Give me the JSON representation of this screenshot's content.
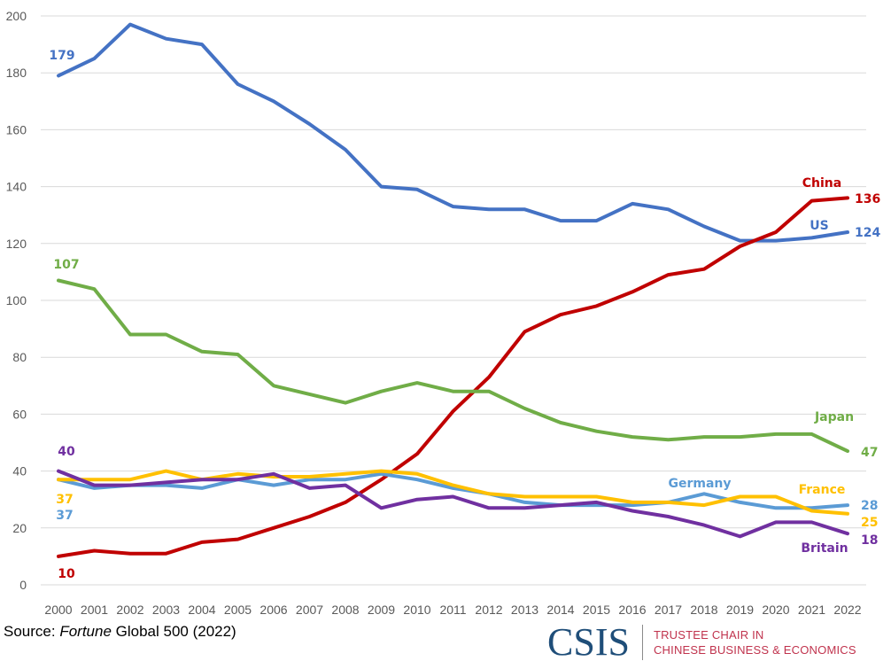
{
  "chart_data": {
    "type": "line",
    "title": "",
    "xlabel": "",
    "ylabel": "",
    "ylim": [
      0,
      200
    ],
    "yticks": [
      0,
      20,
      40,
      60,
      80,
      100,
      120,
      140,
      160,
      180,
      200
    ],
    "grid": true,
    "legend": "none (direct labels)",
    "x": [
      "2000",
      "2001",
      "2002",
      "2003",
      "2004",
      "2005",
      "2006",
      "2007",
      "2008",
      "2009",
      "2010",
      "2011",
      "2012",
      "2013",
      "2014",
      "2015",
      "2016",
      "2017",
      "2018",
      "2019",
      "2020",
      "2021",
      "2022"
    ],
    "series": [
      {
        "name": "US",
        "color": "#4472c4",
        "label": "US",
        "start_label": "179",
        "end_label": "124",
        "values": [
          179,
          185,
          197,
          192,
          190,
          176,
          170,
          162,
          153,
          140,
          139,
          133,
          132,
          132,
          128,
          128,
          134,
          132,
          126,
          121,
          121,
          122,
          124
        ]
      },
      {
        "name": "China",
        "color": "#c00000",
        "label": "China",
        "start_label": "10",
        "end_label": "136",
        "values": [
          10,
          12,
          11,
          11,
          15,
          16,
          20,
          24,
          29,
          37,
          46,
          61,
          73,
          89,
          95,
          98,
          103,
          109,
          111,
          119,
          124,
          135,
          136
        ]
      },
      {
        "name": "Japan",
        "color": "#70ad47",
        "label": "Japan",
        "start_label": "107",
        "end_label": "47",
        "values": [
          107,
          104,
          88,
          88,
          82,
          81,
          70,
          67,
          64,
          68,
          71,
          68,
          68,
          62,
          57,
          54,
          52,
          51,
          52,
          52,
          53,
          53,
          47
        ]
      },
      {
        "name": "Germany",
        "color": "#5b9bd5",
        "label": "Germany",
        "start_label": "37",
        "end_label": "28",
        "values": [
          37,
          34,
          35,
          35,
          34,
          37,
          35,
          37,
          37,
          39,
          37,
          34,
          32,
          29,
          28,
          28,
          28,
          29,
          32,
          29,
          27,
          27,
          28
        ]
      },
      {
        "name": "France",
        "color": "#ffc000",
        "label": "France",
        "start_label": "37",
        "end_label": "25",
        "values": [
          37,
          37,
          37,
          40,
          37,
          39,
          38,
          38,
          39,
          40,
          39,
          35,
          32,
          31,
          31,
          31,
          29,
          29,
          28,
          31,
          31,
          26,
          25
        ]
      },
      {
        "name": "Britain",
        "color": "#7030a0",
        "label": "Britain",
        "start_label": "40",
        "end_label": "18",
        "values": [
          40,
          35,
          35,
          36,
          37,
          37,
          39,
          34,
          35,
          27,
          30,
          31,
          27,
          27,
          28,
          29,
          26,
          24,
          21,
          17,
          22,
          22,
          18
        ]
      }
    ]
  },
  "footer": {
    "source_prefix": "Source: ",
    "source_italic": "Fortune",
    "source_suffix": " Global 500 (2022)",
    "logo_mark": "CSIS",
    "logo_line1": "TRUSTEE CHAIR IN",
    "logo_line2": "CHINESE BUSINESS & ECONOMICS"
  }
}
